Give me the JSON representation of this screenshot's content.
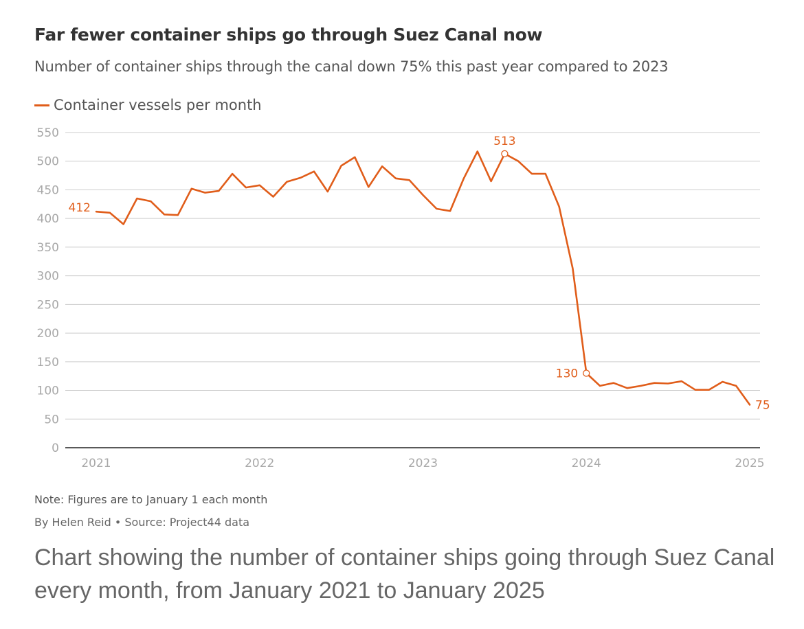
{
  "colors": {
    "line": "#e05d1a",
    "grid": "#cccccc",
    "axis": "#222222",
    "tick": "#a8a8a8"
  },
  "header": {
    "title": "Far fewer container ships go through Suez Canal now",
    "subtitle": "Number of container ships through the canal down 75% this past year compared to 2023"
  },
  "footer": {
    "note": "Note: Figures are to January 1 each month",
    "byline": "By Helen Reid • Source: Project44 data"
  },
  "caption": "Chart showing the number of container ships going through Suez Canal every month, from January 2021 to January 2025",
  "chart_data": {
    "type": "line",
    "title": "Far fewer container ships go through Suez Canal now",
    "subtitle": "Number of container ships through the canal down 75% this past year compared to 2023",
    "xlabel": "",
    "ylabel": "",
    "ylim": [
      0,
      550
    ],
    "yticks": [
      0,
      50,
      100,
      150,
      200,
      250,
      300,
      350,
      400,
      450,
      500,
      550
    ],
    "xlim": [
      "2021-01",
      "2025-01"
    ],
    "xticks": [
      "2021",
      "2022",
      "2023",
      "2024",
      "2025"
    ],
    "grid": true,
    "legend": "top-left",
    "x": [
      "2021-01",
      "2021-02",
      "2021-03",
      "2021-04",
      "2021-05",
      "2021-06",
      "2021-07",
      "2021-08",
      "2021-09",
      "2021-10",
      "2021-11",
      "2021-12",
      "2022-01",
      "2022-02",
      "2022-03",
      "2022-04",
      "2022-05",
      "2022-06",
      "2022-07",
      "2022-08",
      "2022-09",
      "2022-10",
      "2022-11",
      "2022-12",
      "2023-01",
      "2023-02",
      "2023-03",
      "2023-04",
      "2023-05",
      "2023-06",
      "2023-07",
      "2023-08",
      "2023-09",
      "2023-10",
      "2023-11",
      "2023-12",
      "2024-01",
      "2024-02",
      "2024-03",
      "2024-04",
      "2024-05",
      "2024-06",
      "2024-07",
      "2024-08",
      "2024-09",
      "2024-10",
      "2024-11",
      "2024-12",
      "2025-01"
    ],
    "series": [
      {
        "name": "Container vessels per month",
        "values": [
          412,
          410,
          390,
          435,
          430,
          407,
          406,
          452,
          445,
          448,
          478,
          454,
          458,
          438,
          464,
          471,
          482,
          447,
          492,
          507,
          455,
          491,
          470,
          467,
          441,
          417,
          413,
          470,
          517,
          465,
          513,
          500,
          478,
          478,
          421,
          313,
          130,
          108,
          113,
          104,
          108,
          113,
          112,
          116,
          101,
          101,
          115,
          108,
          75
        ]
      }
    ],
    "annotations": [
      {
        "x": "2021-01",
        "y": 412,
        "text": "412"
      },
      {
        "x": "2023-07",
        "y": 513,
        "text": "513"
      },
      {
        "x": "2024-01",
        "y": 130,
        "text": "130"
      },
      {
        "x": "2025-01",
        "y": 75,
        "text": "75"
      }
    ]
  }
}
